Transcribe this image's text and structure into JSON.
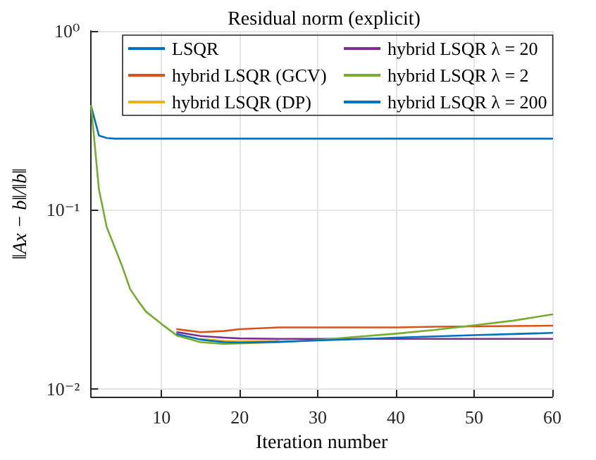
{
  "chart_data": {
    "type": "line",
    "title": "Residual norm (explicit)",
    "xlabel": "Iteration number",
    "ylabel": "‖Ax − b‖/‖b‖",
    "x": [
      1,
      2,
      3,
      4,
      5,
      6,
      7,
      8,
      10,
      12,
      15,
      18,
      20,
      25,
      30,
      35,
      40,
      45,
      50,
      55,
      60
    ],
    "series": [
      {
        "name": "LSQR",
        "color": "#0072bd",
        "values": [
          0.38,
          0.26,
          0.252,
          0.25,
          0.25,
          0.25,
          0.25,
          0.25,
          0.25,
          0.25,
          0.25,
          0.25,
          0.25,
          0.25,
          0.25,
          0.25,
          0.25,
          0.25,
          0.25,
          0.25,
          0.25
        ]
      },
      {
        "name": "hybrid LSQR (GCV)",
        "color": "#d95319",
        "values": [
          null,
          null,
          null,
          null,
          null,
          null,
          null,
          null,
          null,
          0.0215,
          0.0207,
          0.021,
          0.0215,
          0.022,
          0.022,
          0.022,
          0.022,
          0.0222,
          0.0223,
          0.0224,
          0.0225
        ]
      },
      {
        "name": "hybrid LSQR (DP)",
        "color": "#edb120",
        "values": [
          null,
          null,
          null,
          null,
          null,
          null,
          null,
          null,
          null,
          null,
          0.019,
          0.0185,
          0.0184,
          0.0185,
          null,
          null,
          null,
          null,
          null,
          null,
          null
        ]
      },
      {
        "name": "hybrid LSQR λ = 20",
        "color": "#7e2f8e",
        "values": [
          null,
          null,
          null,
          null,
          null,
          null,
          null,
          null,
          null,
          0.0207,
          0.0197,
          0.0193,
          0.0191,
          0.019,
          0.019,
          0.019,
          0.019,
          0.019,
          0.019,
          0.019,
          0.019
        ]
      },
      {
        "name": "hybrid LSQR λ = 2",
        "color": "#77ac30",
        "values": [
          0.38,
          0.13,
          0.08,
          0.062,
          0.048,
          0.036,
          0.031,
          0.027,
          0.023,
          0.0198,
          0.0182,
          0.0178,
          0.0179,
          0.0182,
          0.0187,
          0.0195,
          0.0203,
          0.0213,
          0.0226,
          0.024,
          0.026
        ]
      },
      {
        "name": "hybrid LSQR λ = 200",
        "color": "#0072bd",
        "values": [
          null,
          null,
          null,
          null,
          null,
          null,
          null,
          null,
          null,
          0.0202,
          0.0188,
          0.0182,
          0.0181,
          0.0183,
          0.0186,
          0.0189,
          0.0193,
          0.0196,
          0.0199,
          0.0202,
          0.0205
        ]
      }
    ],
    "xlim": [
      1,
      60
    ],
    "xticks": [
      10,
      20,
      30,
      40,
      50,
      60
    ],
    "ylim": [
      0.009,
      1
    ],
    "yticks": [
      {
        "value": 0.01,
        "label": "10⁻²"
      },
      {
        "value": 0.1,
        "label": "10⁻¹"
      },
      {
        "value": 1,
        "label": "10⁰"
      }
    ],
    "log": true,
    "grid": true,
    "legend": "top right",
    "marker": "none",
    "line_style": "solid"
  }
}
